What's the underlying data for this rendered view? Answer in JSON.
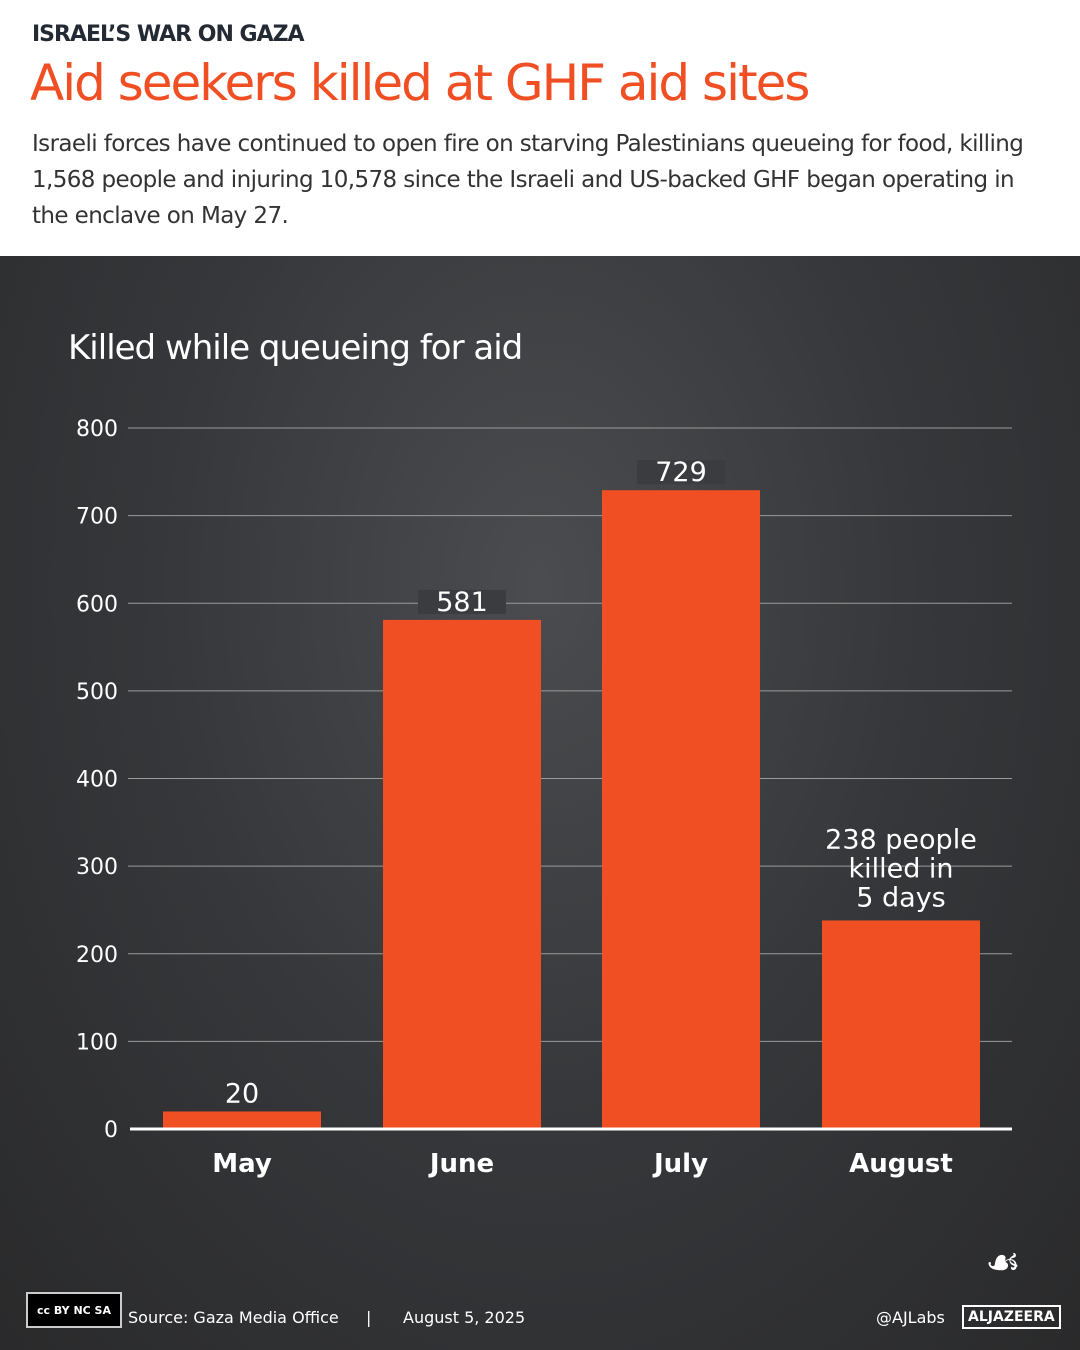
{
  "header": {
    "kicker": "ISRAEL’S WAR ON GAZA",
    "title": "Aid seekers killed at GHF aid sites",
    "subtitle": "Israeli forces have continued to open fire on starving Palestinians queueing for food, killing 1,568 people and injuring 10,578 since the Israeli and US-backed GHF began operating in the enclave on May 27."
  },
  "chart_data": {
    "type": "bar",
    "title": "Killed while queueing for aid",
    "categories": [
      "May",
      "June",
      "July",
      "August"
    ],
    "values": [
      20,
      581,
      729,
      238
    ],
    "data_labels": [
      "20",
      "581",
      "729",
      "238 people killed in 5 days"
    ],
    "ylim": [
      0,
      800
    ],
    "yticks": [
      0,
      100,
      200,
      300,
      400,
      500,
      600,
      700,
      800
    ],
    "grid": true,
    "colors": {
      "bar": "#f04e23",
      "text": "#ffffff"
    }
  },
  "footer": {
    "license": "CC BY NC SA",
    "source": "Source:  Gaza Media Office",
    "separator": "|",
    "date": "August 5, 2025",
    "handle": "@AJLabs",
    "brand": "ALJAZEERA"
  }
}
